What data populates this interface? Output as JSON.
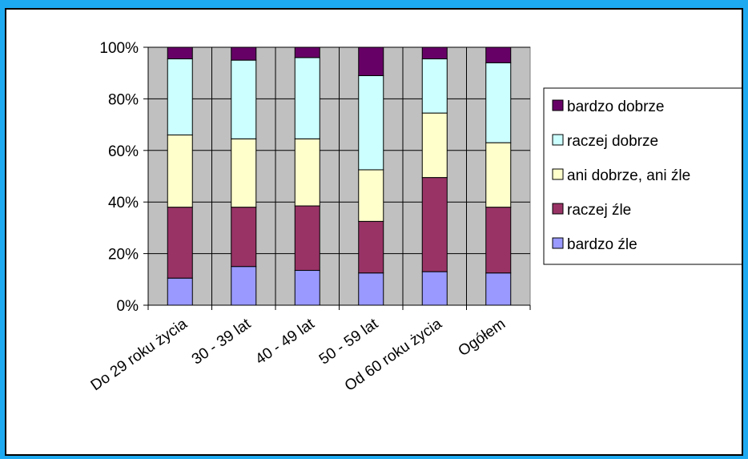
{
  "chart_data": {
    "type": "bar",
    "stacked": true,
    "percent": true,
    "categories": [
      "Do 29 roku życia",
      "30 - 39 lat",
      "40 - 49 lat",
      "50 - 59 lat",
      "Od 60 roku życia",
      "Ogółem"
    ],
    "series": [
      {
        "name": "bardzo źle",
        "color": "#9999ff",
        "values": [
          10.5,
          15,
          13.5,
          12.5,
          13,
          12.5
        ]
      },
      {
        "name": "raczej źle",
        "color": "#993366",
        "values": [
          27.5,
          23,
          25,
          20,
          36.5,
          25.5
        ]
      },
      {
        "name": "ani dobrze, ani źle",
        "color": "#ffffcc",
        "values": [
          28,
          26.5,
          26,
          20,
          25,
          25
        ]
      },
      {
        "name": "raczej dobrze",
        "color": "#ccffff",
        "values": [
          29.5,
          30.5,
          31.5,
          36.5,
          21,
          31
        ]
      },
      {
        "name": "bardzo dobrze",
        "color": "#660066",
        "values": [
          4.5,
          5,
          4,
          11,
          4.5,
          6
        ]
      }
    ],
    "yticks": [
      "0%",
      "20%",
      "40%",
      "60%",
      "80%",
      "100%"
    ],
    "ylim": [
      0,
      100
    ],
    "title": "",
    "xlabel": "",
    "ylabel": "",
    "grid": true,
    "legend_position": "right",
    "plot_background": "#c0c0c0"
  }
}
